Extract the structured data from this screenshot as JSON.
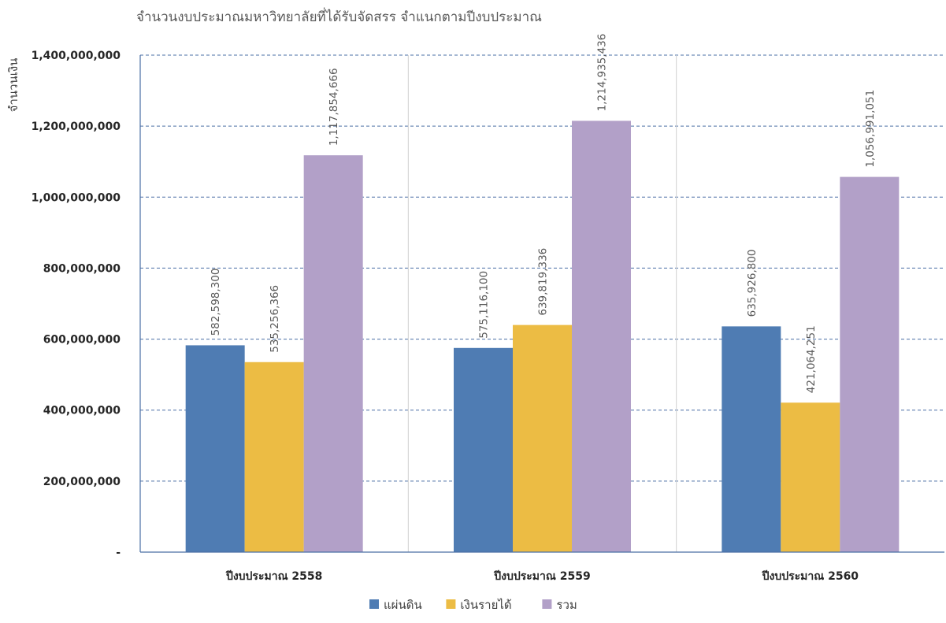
{
  "chart_data": {
    "type": "bar",
    "title": "จำนวนงบประมาณมหาวิทยาลัยที่ได้รับจัดสรร จำแนกตามปีงบประมาณ",
    "ylabel": "จำนวนเงิน",
    "xlabel": "",
    "categories": [
      "ปีงบประมาณ 2558",
      "ปีงบประมาณ 2559",
      "ปีงบประมาณ 2560"
    ],
    "series": [
      {
        "name": "แผ่นดิน",
        "color": "#4f7cb3",
        "values": [
          582598300,
          575116100,
          635926800
        ],
        "labels": [
          "582,598,300",
          "575,116,100",
          "635,926,800"
        ]
      },
      {
        "name": "เงินรายได้",
        "color": "#ecbc44",
        "values": [
          535256366,
          639819336,
          421064251
        ],
        "labels": [
          "535,256,366",
          "639,819,336",
          "421,064,251"
        ]
      },
      {
        "name": "รวม",
        "color": "#b2a0c8",
        "values": [
          1117854666,
          1214935436,
          1056991051
        ],
        "labels": [
          "1,117,854,666",
          "1,214,935,436",
          "1,056,991,051"
        ]
      }
    ],
    "ylim": [
      0,
      1400000000
    ],
    "yticks": [
      {
        "value": 0,
        "label": "-"
      },
      {
        "value": 200000000,
        "label": "200,000,000"
      },
      {
        "value": 400000000,
        "label": "400,000,000"
      },
      {
        "value": 600000000,
        "label": "600,000,000"
      },
      {
        "value": 800000000,
        "label": "800,000,000"
      },
      {
        "value": 1000000000,
        "label": "1,000,000,000"
      },
      {
        "value": 1200000000,
        "label": "1,200,000,000"
      },
      {
        "value": 1400000000,
        "label": "1,400,000,000"
      }
    ],
    "grid": true,
    "legend_position": "bottom"
  }
}
